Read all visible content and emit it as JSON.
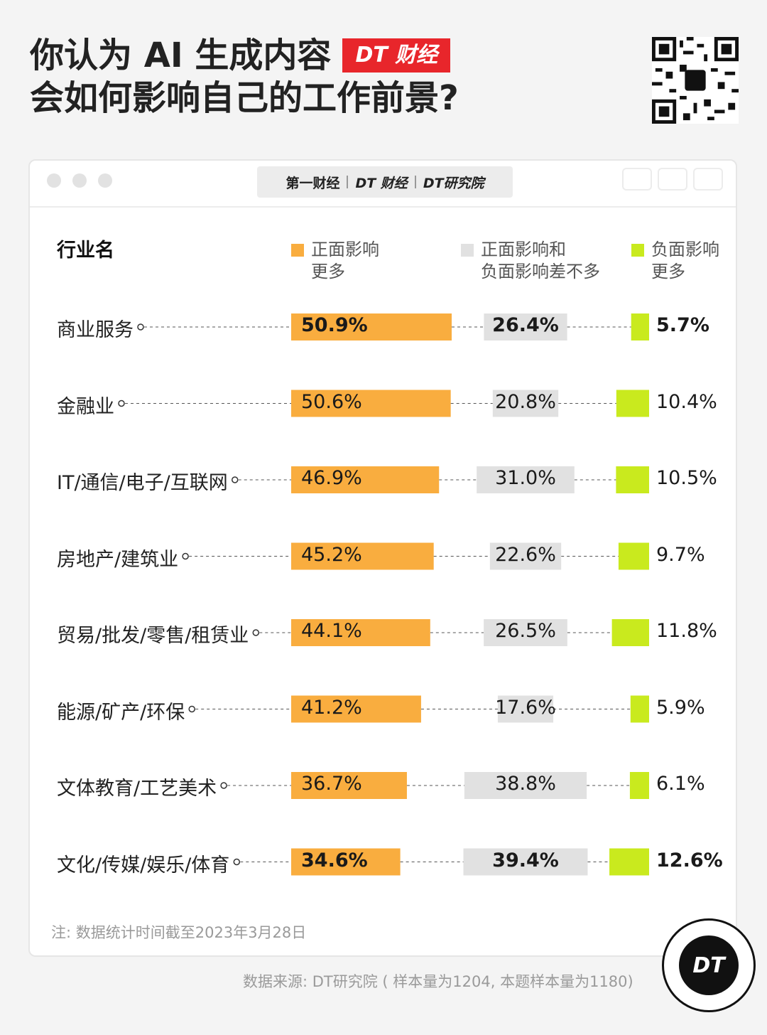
{
  "header": {
    "title_line1": "你认为 AI 生成内容",
    "title_line2": "会如何影响自己的工作前景?",
    "brand_badge": "DT 财经"
  },
  "window_logos": [
    "第一财经",
    "DT 财经",
    "DT研究院"
  ],
  "chart_data": {
    "type": "bar",
    "column_header": "行业名",
    "series": [
      {
        "name": "正面影响更多",
        "name_lines": [
          "正面影响",
          "更多"
        ],
        "color": "#f9ad3f"
      },
      {
        "name": "正面影响和负面影响差不多",
        "name_lines": [
          "正面影响和",
          "负面影响差不多"
        ],
        "color": "#e1e1e1"
      },
      {
        "name": "负面影响更多",
        "name_lines": [
          "负面影响",
          "更多"
        ],
        "color": "#c9ea1e"
      }
    ],
    "categories": [
      "商业服务",
      "金融业",
      "IT/通信/电子/互联网",
      "房地产/建筑业",
      "贸易/批发/零售/租赁业",
      "能源/矿产/环保",
      "文体教育/工艺美术",
      "文化/传媒/娱乐/体育"
    ],
    "values": [
      [
        50.9,
        26.4,
        5.7
      ],
      [
        50.6,
        20.8,
        10.4
      ],
      [
        46.9,
        31.0,
        10.5
      ],
      [
        45.2,
        22.6,
        9.7
      ],
      [
        44.1,
        26.5,
        11.8
      ],
      [
        41.2,
        17.6,
        5.9
      ],
      [
        36.7,
        38.8,
        6.1
      ],
      [
        34.6,
        39.4,
        12.6
      ]
    ],
    "labels": [
      [
        "50.9%",
        "26.4%",
        "5.7%"
      ],
      [
        "50.6%",
        "20.8%",
        "10.4%"
      ],
      [
        "46.9%",
        "31.0%",
        "10.5%"
      ],
      [
        "45.2%",
        "22.6%",
        "9.7%"
      ],
      [
        "44.1%",
        "26.5%",
        "11.8%"
      ],
      [
        "41.2%",
        "17.6%",
        "5.9%"
      ],
      [
        "36.7%",
        "38.8%",
        "6.1%"
      ],
      [
        "34.6%",
        "39.4%",
        "12.6%"
      ]
    ],
    "bold_rows": [
      0,
      7
    ],
    "unit": "%"
  },
  "footer": {
    "note": "注: 数据统计时间截至2023年3月28日",
    "source": "数据来源: DT研究院 ( 样本量为1204, 本题样本量为1180)",
    "circle_logo": "DT"
  }
}
